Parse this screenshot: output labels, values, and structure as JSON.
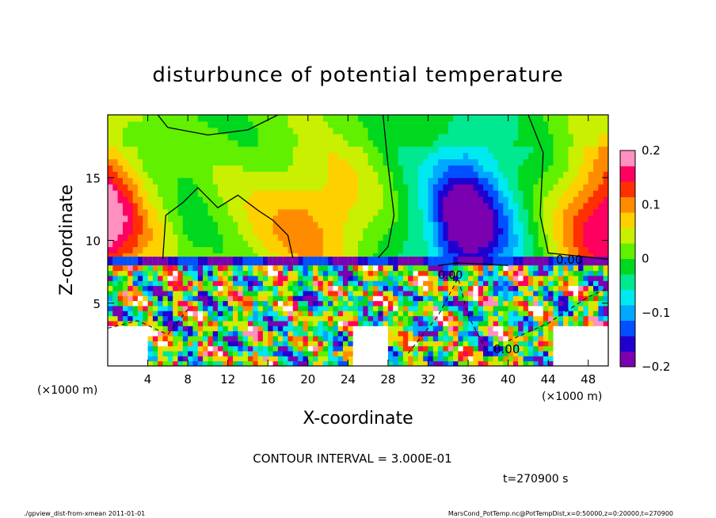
{
  "chart_data": {
    "type": "heatmap",
    "title": "disturbunce of potential temperature",
    "xlabel": "X-coordinate",
    "ylabel": "Z-coordinate",
    "x_unit_label": "(×1000 m)",
    "y_unit_label": "(×1000 m)",
    "xlim": [
      0,
      50
    ],
    "ylim": [
      0,
      20
    ],
    "x_ticks": [
      "4",
      "8",
      "12",
      "16",
      "20",
      "24",
      "28",
      "32",
      "36",
      "40",
      "44",
      "48"
    ],
    "y_ticks": [
      "5",
      "10",
      "15"
    ],
    "colorbar": {
      "range": [
        -0.2,
        0.2
      ],
      "ticks": [
        "0.2",
        "0.1",
        "0",
        "−0.1",
        "−0.2"
      ],
      "palette": [
        "#7a00b0",
        "#2000d0",
        "#0050ff",
        "#00a8ff",
        "#00e8f0",
        "#00e890",
        "#00d820",
        "#60f000",
        "#c8f000",
        "#ffd000",
        "#ff8c00",
        "#ff3000",
        "#ff0060",
        "#ff90c0"
      ]
    },
    "contour_labels": [
      "0.00",
      "0.00",
      "0.00"
    ],
    "contour_interval_text": "CONTOUR INTERVAL = 3.000E-01",
    "time_text": "t=270900  s",
    "upper_layer": {
      "z_interface": 8,
      "x": [
        0,
        4,
        8,
        12,
        16,
        20,
        24,
        28,
        32,
        34,
        36,
        38,
        40,
        44,
        48,
        50
      ],
      "anomaly": [
        0.17,
        0.06,
        0.0,
        0.02,
        0.05,
        0.08,
        0.06,
        0.0,
        -0.07,
        -0.15,
        -0.18,
        -0.14,
        -0.08,
        0.02,
        0.12,
        0.15
      ]
    }
  },
  "footer": {
    "left": "./gpview_dist-from-xmean  2011-01-01",
    "right": "MarsCond_PotTemp.nc@PotTempDist,x=0:50000,z=0:20000,t=270900"
  }
}
